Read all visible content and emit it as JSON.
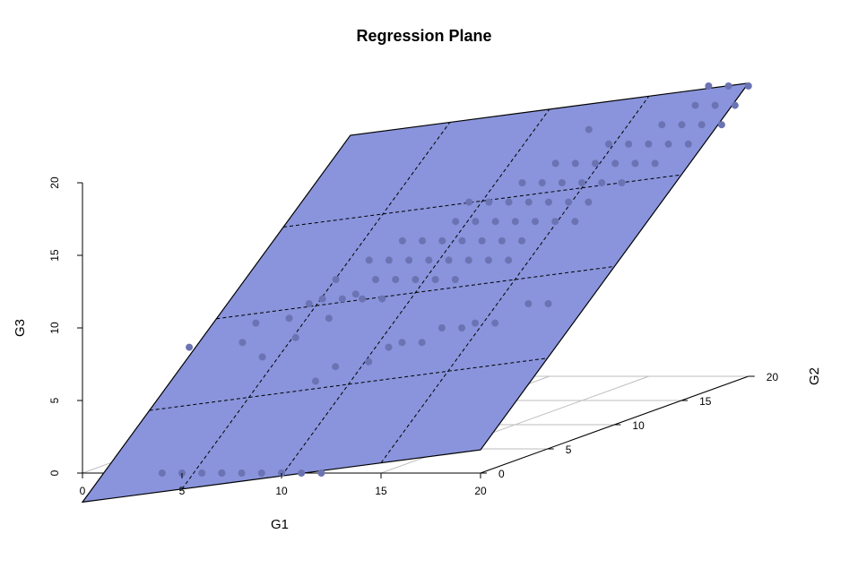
{
  "chart_data": {
    "type": "scatter",
    "title": "Regression Plane",
    "xlabel": "G1",
    "ylabel": "G2",
    "zlabel": "G3",
    "xlim": [
      0,
      20
    ],
    "ylim": [
      0,
      20
    ],
    "zlim": [
      0,
      20
    ],
    "xticks": [
      "0",
      "5",
      "10",
      "15",
      "20"
    ],
    "yticks": [
      "0",
      "5",
      "10",
      "15",
      "20"
    ],
    "zticks": [
      "0",
      "5",
      "10",
      "15",
      "20"
    ],
    "grid": true,
    "plane_color": "#8994dc",
    "point_color": "#6b73b3",
    "plane": {
      "intercept": -2.0,
      "slope_G1": 0.18,
      "slope_G2": 0.93
    },
    "points": [
      {
        "x": 4,
        "y": 0,
        "z": 0
      },
      {
        "x": 5,
        "y": 0,
        "z": 0
      },
      {
        "x": 6,
        "y": 0,
        "z": 0
      },
      {
        "x": 7,
        "y": 0,
        "z": 0
      },
      {
        "x": 8,
        "y": 0,
        "z": 0
      },
      {
        "x": 9,
        "y": 0,
        "z": 0
      },
      {
        "x": 10,
        "y": 0,
        "z": 0
      },
      {
        "x": 11,
        "y": 0,
        "z": 0
      },
      {
        "x": 12,
        "y": 0,
        "z": 0
      },
      {
        "x": 7,
        "y": 0,
        "z": 0
      },
      {
        "x": 7,
        "y": 7,
        "z": 4
      },
      {
        "x": 8,
        "y": 7,
        "z": 5
      },
      {
        "x": 9,
        "y": 8,
        "z": 5
      },
      {
        "x": 10,
        "y": 8,
        "z": 6
      },
      {
        "x": 11,
        "y": 9,
        "z": 6
      },
      {
        "x": 12,
        "y": 9,
        "z": 7
      },
      {
        "x": 13,
        "y": 10,
        "z": 7
      },
      {
        "x": 14,
        "y": 10,
        "z": 7
      },
      {
        "x": 15,
        "y": 11,
        "z": 8
      },
      {
        "x": 16,
        "y": 11,
        "z": 8
      },
      {
        "x": 10,
        "y": 9,
        "z": 6
      },
      {
        "x": 13,
        "y": 9,
        "z": 7
      },
      {
        "x": 2,
        "y": 5,
        "z": 7
      },
      {
        "x": 4,
        "y": 6,
        "z": 7
      },
      {
        "x": 4,
        "y": 7,
        "z": 8
      },
      {
        "x": 5,
        "y": 8,
        "z": 8
      },
      {
        "x": 6,
        "y": 7,
        "z": 7
      },
      {
        "x": 5,
        "y": 6,
        "z": 6
      },
      {
        "x": 6,
        "y": 8,
        "z": 9
      },
      {
        "x": 7,
        "y": 9,
        "z": 9
      },
      {
        "x": 6,
        "y": 10,
        "z": 10
      },
      {
        "x": 7,
        "y": 8,
        "z": 8
      },
      {
        "x": 8,
        "y": 9,
        "z": 9
      },
      {
        "x": 8,
        "y": 10,
        "z": 10
      },
      {
        "x": 9,
        "y": 10,
        "z": 10
      },
      {
        "x": 8,
        "y": 11,
        "z": 11
      },
      {
        "x": 9,
        "y": 11,
        "z": 11
      },
      {
        "x": 10,
        "y": 11,
        "z": 11
      },
      {
        "x": 10,
        "y": 12,
        "z": 12
      },
      {
        "x": 11,
        "y": 12,
        "z": 12
      },
      {
        "x": 11,
        "y": 11,
        "z": 11
      },
      {
        "x": 12,
        "y": 11,
        "z": 11
      },
      {
        "x": 12,
        "y": 12,
        "z": 12
      },
      {
        "x": 13,
        "y": 12,
        "z": 12
      },
      {
        "x": 12,
        "y": 13,
        "z": 13
      },
      {
        "x": 13,
        "y": 13,
        "z": 13
      },
      {
        "x": 14,
        "y": 13,
        "z": 13
      },
      {
        "x": 14,
        "y": 12,
        "z": 12
      },
      {
        "x": 9,
        "y": 12,
        "z": 12
      },
      {
        "x": 10,
        "y": 13,
        "z": 13
      },
      {
        "x": 11,
        "y": 13,
        "z": 13
      },
      {
        "x": 12,
        "y": 14,
        "z": 14
      },
      {
        "x": 13,
        "y": 14,
        "z": 14
      },
      {
        "x": 14,
        "y": 14,
        "z": 14
      },
      {
        "x": 15,
        "y": 14,
        "z": 14
      },
      {
        "x": 15,
        "y": 13,
        "z": 13
      },
      {
        "x": 16,
        "y": 13,
        "z": 13
      },
      {
        "x": 16,
        "y": 14,
        "z": 14
      },
      {
        "x": 13,
        "y": 15,
        "z": 15
      },
      {
        "x": 14,
        "y": 15,
        "z": 15
      },
      {
        "x": 15,
        "y": 15,
        "z": 15
      },
      {
        "x": 16,
        "y": 15,
        "z": 15
      },
      {
        "x": 15,
        "y": 16,
        "z": 16
      },
      {
        "x": 16,
        "y": 16,
        "z": 16
      },
      {
        "x": 17,
        "y": 16,
        "z": 16
      },
      {
        "x": 16,
        "y": 17,
        "z": 17
      },
      {
        "x": 17,
        "y": 17,
        "z": 17
      },
      {
        "x": 18,
        "y": 17,
        "z": 17
      },
      {
        "x": 17,
        "y": 15,
        "z": 15
      },
      {
        "x": 18,
        "y": 16,
        "z": 16
      },
      {
        "x": 17,
        "y": 18,
        "z": 18
      },
      {
        "x": 18,
        "y": 18,
        "z": 18
      },
      {
        "x": 19,
        "y": 18,
        "z": 18
      },
      {
        "x": 18,
        "y": 19,
        "z": 19
      },
      {
        "x": 19,
        "y": 19,
        "z": 19
      },
      {
        "x": 19,
        "y": 20,
        "z": 20
      },
      {
        "x": 20,
        "y": 19,
        "z": 19
      },
      {
        "x": 20,
        "y": 20,
        "z": 20
      },
      {
        "x": 11,
        "y": 10,
        "z": 10
      },
      {
        "x": 12,
        "y": 10,
        "z": 10
      },
      {
        "x": 13,
        "y": 11,
        "z": 11
      },
      {
        "x": 14,
        "y": 11,
        "z": 11
      },
      {
        "x": 10,
        "y": 10,
        "z": 10
      },
      {
        "x": 9,
        "y": 9,
        "z": 9
      },
      {
        "x": 11,
        "y": 14,
        "z": 14
      },
      {
        "x": 12,
        "y": 15,
        "z": 15
      },
      {
        "x": 14,
        "y": 16,
        "z": 16
      },
      {
        "x": 15,
        "y": 17,
        "z": 17
      },
      {
        "x": 19,
        "y": 17,
        "z": 17
      },
      {
        "x": 20,
        "y": 18,
        "z": 18
      },
      {
        "x": 14,
        "y": 17,
        "z": 18
      },
      {
        "x": 13,
        "y": 16,
        "z": 16
      },
      {
        "x": 10,
        "y": 14,
        "z": 14
      },
      {
        "x": 8,
        "y": 12,
        "z": 12
      },
      {
        "x": 7,
        "y": 11,
        "z": 11
      },
      {
        "x": 7,
        "y": 10,
        "z": 9
      },
      {
        "x": 6,
        "y": 9,
        "z": 9
      },
      {
        "x": 18,
        "y": 20,
        "z": 20
      }
    ]
  }
}
